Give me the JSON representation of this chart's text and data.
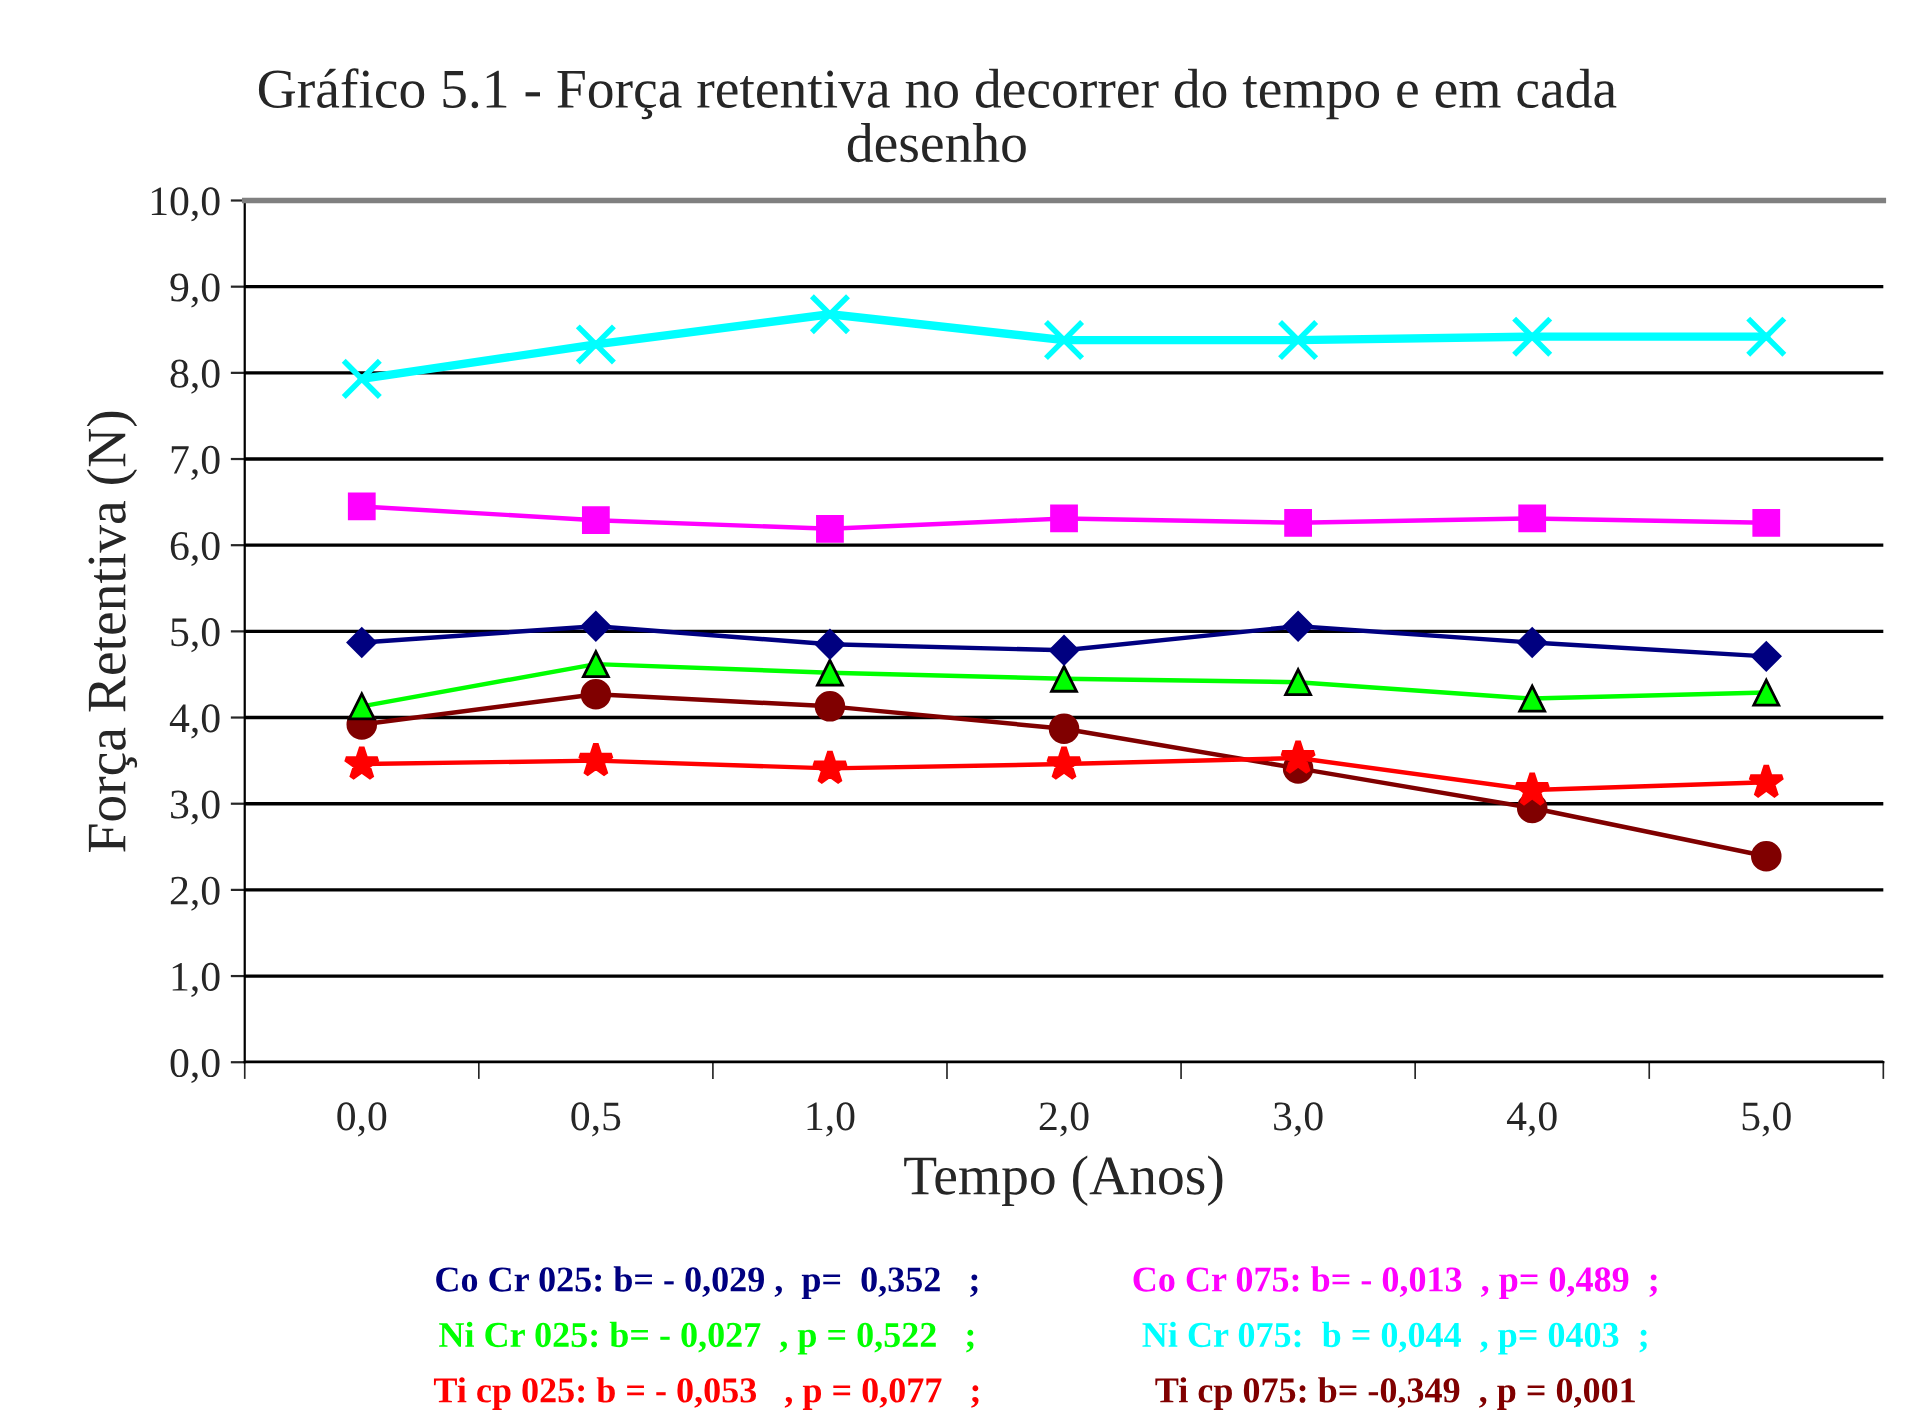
{
  "chart_data": {
    "type": "line",
    "title": "Gráfico 5.1 - Força retentiva no decorrer do tempo e em cada\ndesenho",
    "xlabel": "Tempo (Anos)",
    "ylabel": "Força Retentiva (N)",
    "categories": [
      "0,0",
      "0,5",
      "1,0",
      "2,0",
      "3,0",
      "4,0",
      "5,0"
    ],
    "series": [
      {
        "color": "#000080",
        "marker": "diamond",
        "values": [
          4.87,
          5.06,
          4.85,
          4.78,
          5.06,
          4.87,
          4.71
        ]
      },
      {
        "color": "#ff00ff",
        "marker": "square",
        "values": [
          6.45,
          6.29,
          6.19,
          6.31,
          6.26,
          6.31,
          6.26
        ]
      },
      {
        "color": "#00ff00",
        "marker": "triangle",
        "values": [
          4.13,
          4.62,
          4.52,
          4.45,
          4.41,
          4.22,
          4.29
        ]
      },
      {
        "color": "#00ffff",
        "marker": "cross",
        "values": [
          7.93,
          8.33,
          8.68,
          8.38,
          8.38,
          8.42,
          8.42
        ]
      },
      {
        "color": "#ff0000",
        "marker": "star",
        "values": [
          3.46,
          3.5,
          3.41,
          3.46,
          3.53,
          3.16,
          3.25
        ]
      },
      {
        "color": "#800000",
        "marker": "circle",
        "values": [
          3.92,
          4.27,
          4.13,
          3.87,
          3.41,
          2.95,
          2.39
        ]
      }
    ],
    "ylim": [
      0,
      10
    ],
    "yticks": [
      {
        "value": 0,
        "label": "0,0"
      },
      {
        "value": 1,
        "label": "1,0"
      },
      {
        "value": 2,
        "label": "2,0"
      },
      {
        "value": 3,
        "label": "3,0"
      },
      {
        "value": 4,
        "label": "4,0"
      },
      {
        "value": 5,
        "label": "5,0"
      },
      {
        "value": 6,
        "label": "6,0"
      },
      {
        "value": 7,
        "label": "7,0"
      },
      {
        "value": 8,
        "label": "8,0"
      },
      {
        "value": 9,
        "label": "9,0"
      },
      {
        "value": 10,
        "label": "10,0"
      }
    ],
    "grid": "y",
    "legend": false,
    "annotations": [
      "Co Cr 025: b= - 0,029 ,  p=  0,352   ;",
      "Co Cr 075: b= - 0,013  , p= 0,489  ;",
      "Ni Cr 025: b= - 0,027  , p = 0,522   ;",
      "Ni Cr 075:  b = 0,044  , p= 0403  ;",
      "Ti cp 025: b = - 0,053   , p = 0,077   ;",
      "Ti cp 075: b= -0,349  , p = 0,001"
    ]
  }
}
